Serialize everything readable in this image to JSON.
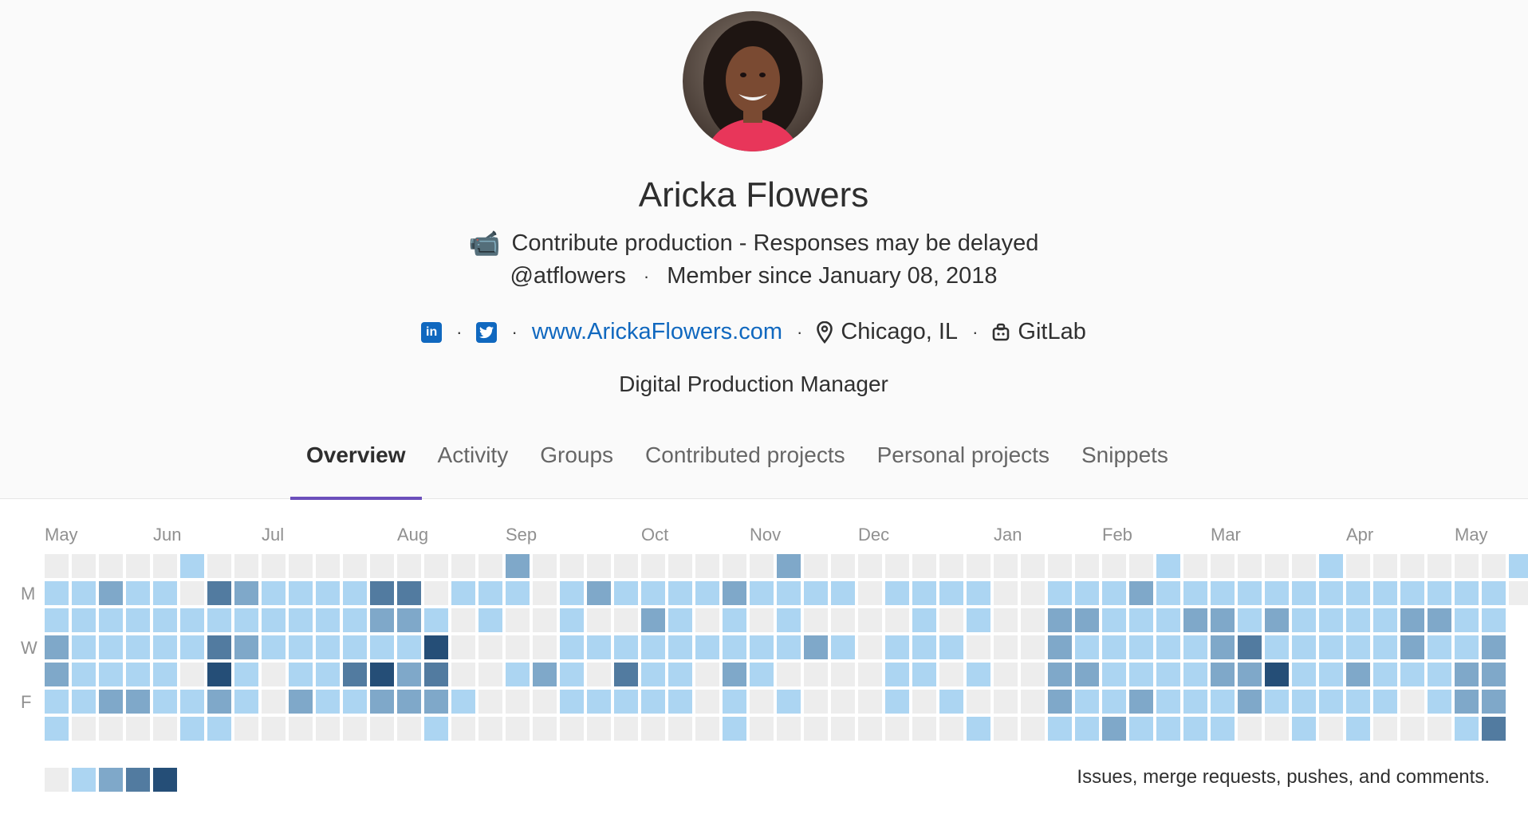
{
  "profile": {
    "name": "Aricka Flowers",
    "status_emoji": "📹",
    "status_text": "Contribute production - Responses may be delayed",
    "username": "@atflowers",
    "member_since": "Member since January 08, 2018",
    "website": "www.ArickaFlowers.com",
    "location": "Chicago, IL",
    "organization": "GitLab",
    "job_title": "Digital Production Manager",
    "linkedin_icon": "linkedin-icon",
    "twitter_icon": "twitter-icon"
  },
  "tabs": [
    {
      "label": "Overview",
      "active": true
    },
    {
      "label": "Activity",
      "active": false
    },
    {
      "label": "Groups",
      "active": false
    },
    {
      "label": "Contributed projects",
      "active": false
    },
    {
      "label": "Personal projects",
      "active": false
    },
    {
      "label": "Snippets",
      "active": false
    }
  ],
  "calendar": {
    "months": [
      "May",
      "Jun",
      "Jul",
      "Aug",
      "Sep",
      "Oct",
      "Nov",
      "Dec",
      "Jan",
      "Feb",
      "Mar",
      "Apr",
      "May"
    ],
    "month_week_index": [
      0,
      4,
      8,
      13,
      17,
      22,
      26,
      30,
      35,
      39,
      43,
      48,
      52
    ],
    "day_labels": [
      "M",
      "W",
      "F"
    ],
    "colors": [
      "#ededed",
      "#acd5f2",
      "#7fa8c9",
      "#527ba0",
      "#254e77"
    ],
    "legend_text": "Issues, merge requests, pushes, and comments.",
    "weeks": [
      [
        0,
        1,
        1,
        2,
        2,
        1,
        1
      ],
      [
        0,
        1,
        1,
        1,
        1,
        1,
        0
      ],
      [
        0,
        2,
        1,
        1,
        1,
        2,
        0
      ],
      [
        0,
        1,
        1,
        1,
        1,
        2,
        0
      ],
      [
        0,
        1,
        1,
        1,
        1,
        1,
        0
      ],
      [
        1,
        0,
        1,
        1,
        0,
        1,
        1
      ],
      [
        0,
        3,
        1,
        3,
        4,
        2,
        1
      ],
      [
        0,
        2,
        1,
        2,
        1,
        1,
        0
      ],
      [
        0,
        1,
        1,
        1,
        0,
        0,
        0
      ],
      [
        0,
        1,
        1,
        1,
        1,
        2,
        0
      ],
      [
        0,
        1,
        1,
        1,
        1,
        1,
        0
      ],
      [
        0,
        1,
        1,
        1,
        3,
        1,
        0
      ],
      [
        0,
        3,
        2,
        1,
        4,
        2,
        0
      ],
      [
        0,
        3,
        2,
        1,
        2,
        2,
        0
      ],
      [
        0,
        0,
        1,
        4,
        3,
        2,
        1
      ],
      [
        0,
        1,
        0,
        0,
        0,
        1,
        0
      ],
      [
        0,
        1,
        1,
        0,
        0,
        0,
        0
      ],
      [
        2,
        1,
        0,
        0,
        1,
        0,
        0
      ],
      [
        0,
        0,
        0,
        0,
        2,
        0,
        0
      ],
      [
        0,
        1,
        1,
        1,
        1,
        1,
        0
      ],
      [
        0,
        2,
        0,
        1,
        0,
        1,
        0
      ],
      [
        0,
        1,
        0,
        1,
        3,
        1,
        0
      ],
      [
        0,
        1,
        2,
        1,
        1,
        1,
        0
      ],
      [
        0,
        1,
        1,
        1,
        1,
        1,
        0
      ],
      [
        0,
        1,
        0,
        1,
        0,
        0,
        0
      ],
      [
        0,
        2,
        1,
        1,
        2,
        1,
        1
      ],
      [
        0,
        1,
        0,
        1,
        1,
        0,
        0
      ],
      [
        2,
        1,
        1,
        1,
        0,
        1,
        0
      ],
      [
        0,
        1,
        0,
        2,
        0,
        0,
        0
      ],
      [
        0,
        1,
        0,
        1,
        0,
        0,
        0
      ],
      [
        0,
        0,
        0,
        0,
        0,
        0,
        0
      ],
      [
        0,
        1,
        0,
        1,
        1,
        1,
        0
      ],
      [
        0,
        1,
        1,
        1,
        1,
        0,
        0
      ],
      [
        0,
        1,
        0,
        1,
        0,
        1,
        0
      ],
      [
        0,
        1,
        1,
        0,
        1,
        0,
        1
      ],
      [
        0,
        0,
        0,
        0,
        0,
        0,
        0
      ],
      [
        0,
        0,
        0,
        0,
        0,
        0,
        0
      ],
      [
        0,
        1,
        2,
        2,
        2,
        2,
        1
      ],
      [
        0,
        1,
        2,
        1,
        2,
        1,
        1
      ],
      [
        0,
        1,
        1,
        1,
        1,
        1,
        2
      ],
      [
        0,
        2,
        1,
        1,
        1,
        2,
        1
      ],
      [
        1,
        1,
        1,
        1,
        1,
        1,
        1
      ],
      [
        0,
        1,
        2,
        1,
        1,
        1,
        1
      ],
      [
        0,
        1,
        2,
        2,
        2,
        1,
        1
      ],
      [
        0,
        1,
        1,
        3,
        2,
        2,
        0
      ],
      [
        0,
        1,
        2,
        1,
        4,
        1,
        0
      ],
      [
        0,
        1,
        1,
        1,
        1,
        1,
        1
      ],
      [
        1,
        1,
        1,
        1,
        1,
        1,
        0
      ],
      [
        0,
        1,
        1,
        1,
        2,
        1,
        1
      ],
      [
        0,
        1,
        1,
        1,
        1,
        1,
        0
      ],
      [
        0,
        1,
        2,
        2,
        1,
        0,
        0
      ],
      [
        0,
        1,
        2,
        1,
        1,
        1,
        0
      ],
      [
        0,
        1,
        1,
        1,
        2,
        2,
        1
      ],
      [
        0,
        1,
        1,
        2,
        2,
        2,
        3
      ],
      [
        1,
        0,
        0,
        0,
        0,
        0,
        0
      ]
    ]
  }
}
